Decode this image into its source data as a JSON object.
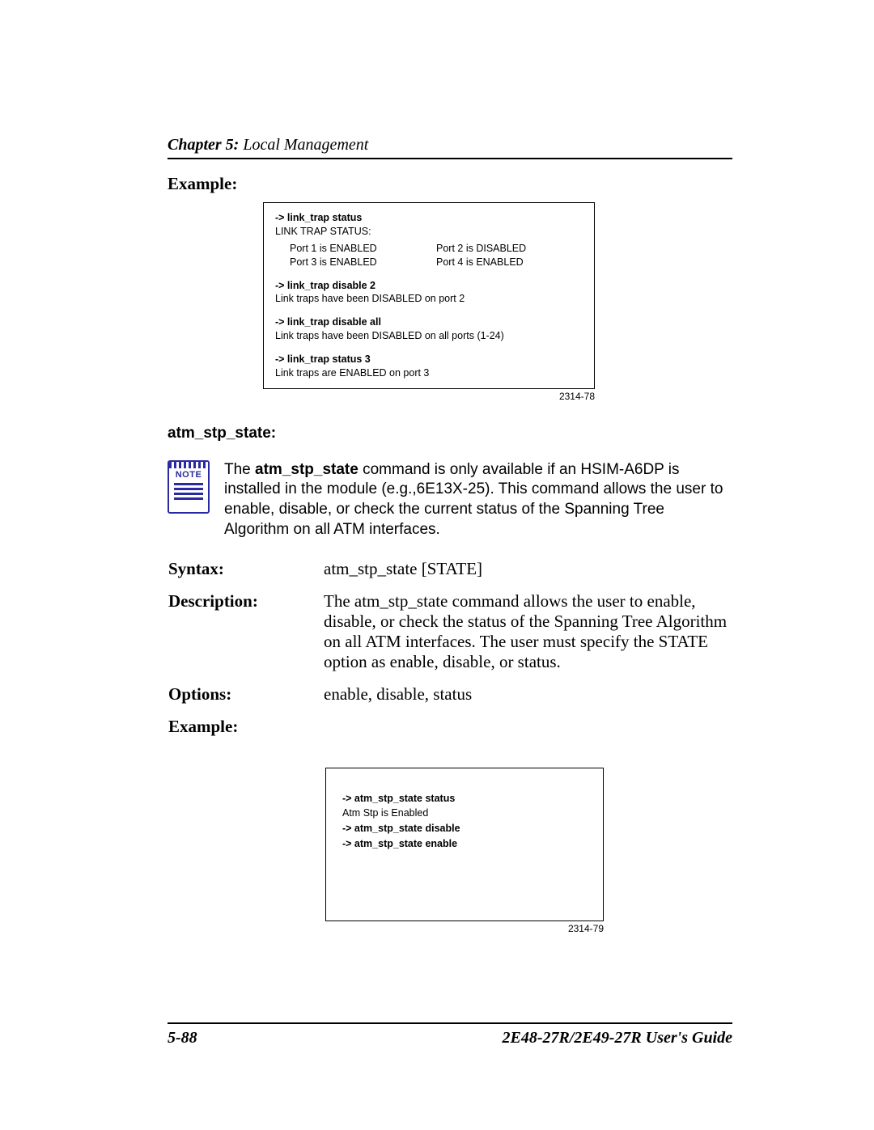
{
  "header": {
    "chapter_label": "Chapter 5:",
    "chapter_title": " Local Management"
  },
  "example1": {
    "label": "Example:",
    "cmd1": "-> link_trap status",
    "resp1": "LINK TRAP STATUS:",
    "port11": "Port 1  is ENABLED",
    "port12": "Port 2  is DISABLED",
    "port21": "Port 3  is ENABLED",
    "port22": "Port 4  is ENABLED",
    "cmd2": "-> link_trap disable 2",
    "resp2": "Link traps have been DISABLED on port 2",
    "cmd3": "-> link_trap disable all",
    "resp3": "Link traps have been DISABLED on all ports (1-24)",
    "cmd4": "-> link_trap status 3",
    "resp4": "Link traps are ENABLED on port 3",
    "figno": "2314-78"
  },
  "atm": {
    "heading": "atm_stp_state:",
    "note_label": "NOTE",
    "note_pre": "The ",
    "note_cmd": "atm_stp_state",
    "note_post": " command is only available if an HSIM-A6DP is installed in the module (e.g.,6E13X-25). This command allows the user to enable, disable, or check the current status of the Spanning Tree Algorithm on all ATM interfaces.",
    "syntax_label": "Syntax:",
    "syntax_value": "atm_stp_state [STATE]",
    "desc_label": "Description:",
    "desc_value": "The atm_stp_state command allows the user to enable, disable, or check the status of the Spanning Tree Algorithm on all ATM interfaces. The user must specify the STATE option as enable, disable, or status.",
    "opts_label": "Options:",
    "opts_value": "enable, disable, status",
    "ex_label": "Example:"
  },
  "example2": {
    "cmd1": "-> atm_stp_state status",
    "resp1": "Atm Stp is Enabled",
    "cmd2": "-> atm_stp_state disable",
    "cmd3": "-> atm_stp_state enable",
    "figno": "2314-79"
  },
  "footer": {
    "pageno": "5-88",
    "guide": "2E48-27R/2E49-27R User's Guide"
  }
}
